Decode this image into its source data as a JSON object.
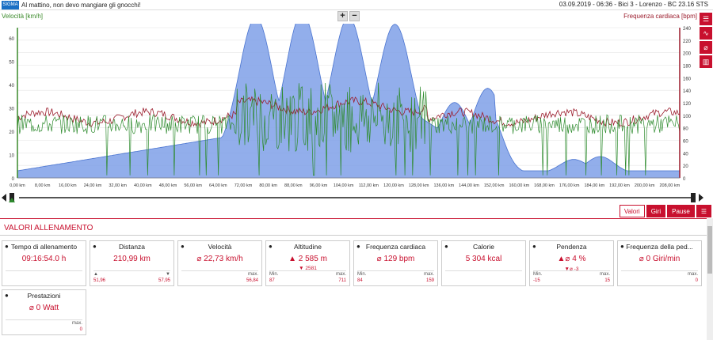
{
  "header": {
    "title": "Al mattino, non devo mangiare gli gnocchi!",
    "meta": "03.09.2019  -  06:36  -  Bici 3  -  Lorenzo  -  BC 23.16 STS",
    "logo": "SIGMA"
  },
  "chart": {
    "left_label": "Velocità [km/h]",
    "right_label": "Frequenza cardiaca [bpm]",
    "left_ticks": [
      "60",
      "50",
      "40",
      "30",
      "20",
      "10",
      "0"
    ],
    "right_ticks": [
      "240",
      "220",
      "200",
      "180",
      "160",
      "140",
      "120",
      "100",
      "80",
      "60",
      "40",
      "20",
      "0"
    ],
    "x_ticks": [
      "0,00 km",
      "8,00 km",
      "16,00 km",
      "24,00 km",
      "32,00 km",
      "40,00 km",
      "48,00 km",
      "56,00 km",
      "64,00 km",
      "72,00 km",
      "80,00 km",
      "88,00 km",
      "96,00 km",
      "104,00 km",
      "112,00 km",
      "120,00 km",
      "128,00 km",
      "136,00 km",
      "144,00 km",
      "152,00 km",
      "160,00 km",
      "168,00 km",
      "176,00 km",
      "184,00 km",
      "192,00 km",
      "200,00 km",
      "208,00 km"
    ],
    "colors": {
      "altitude": "#7fa0e8",
      "speed": "#2e8b2e",
      "heart": "#9b1c2c"
    }
  },
  "zoom": {
    "plus": "+",
    "minus": "−"
  },
  "tabs": [
    "Valori",
    "Giri",
    "Pause"
  ],
  "section_title": "VALORI ALLENAMENTO",
  "cards": [
    {
      "title": "Tempo di allenamento",
      "icon": "clock-icon",
      "value": "09:16:54.0 h",
      "sub": "",
      "min_label": "",
      "min": "",
      "max_label": "",
      "max": ""
    },
    {
      "title": "Distanza",
      "icon": "distance-icon",
      "value": "210,99 km",
      "sub": "",
      "min_label": "▲",
      "min": "51,96",
      "max_label": "▼",
      "max": "57,95"
    },
    {
      "title": "Velocità",
      "icon": "speedometer-icon",
      "value": "⌀ 22,73 km/h",
      "sub": "",
      "min_label": "",
      "min": "",
      "max_label": "max.",
      "max": "56,84"
    },
    {
      "title": "Altitudine",
      "icon": "mountain-icon",
      "value": "▲ 2 585 m",
      "sub": "▼ 2581",
      "min_label": "Min.",
      "min": "87",
      "max_label": "max.",
      "max": "711"
    },
    {
      "title": "Frequenza cardiaca",
      "icon": "heart-icon",
      "value": "⌀ 129 bpm",
      "sub": "",
      "min_label": "Min.",
      "min": "84",
      "max_label": "max.",
      "max": "159"
    },
    {
      "title": "Calorie",
      "icon": "flame-icon",
      "value": "5 304 kcal",
      "sub": "",
      "min_label": "",
      "min": "",
      "max_label": "",
      "max": ""
    },
    {
      "title": "Pendenza",
      "icon": "slope-icon",
      "value": "▲⌀ 4 %",
      "sub": "▼⌀ -3",
      "min_label": "Min.",
      "min": "-15",
      "max_label": "max.",
      "max": "15"
    },
    {
      "title": "Frequenza della ped...",
      "icon": "cadence-icon",
      "value": "⌀ 0 Giri/min",
      "sub": "",
      "min_label": "",
      "min": "",
      "max_label": "max.",
      "max": "0"
    },
    {
      "title": "Prestazioni",
      "icon": "power-icon",
      "value": "⌀ 0 Watt",
      "sub": "",
      "min_label": "",
      "min": "",
      "max_label": "max.",
      "max": "0"
    }
  ]
}
